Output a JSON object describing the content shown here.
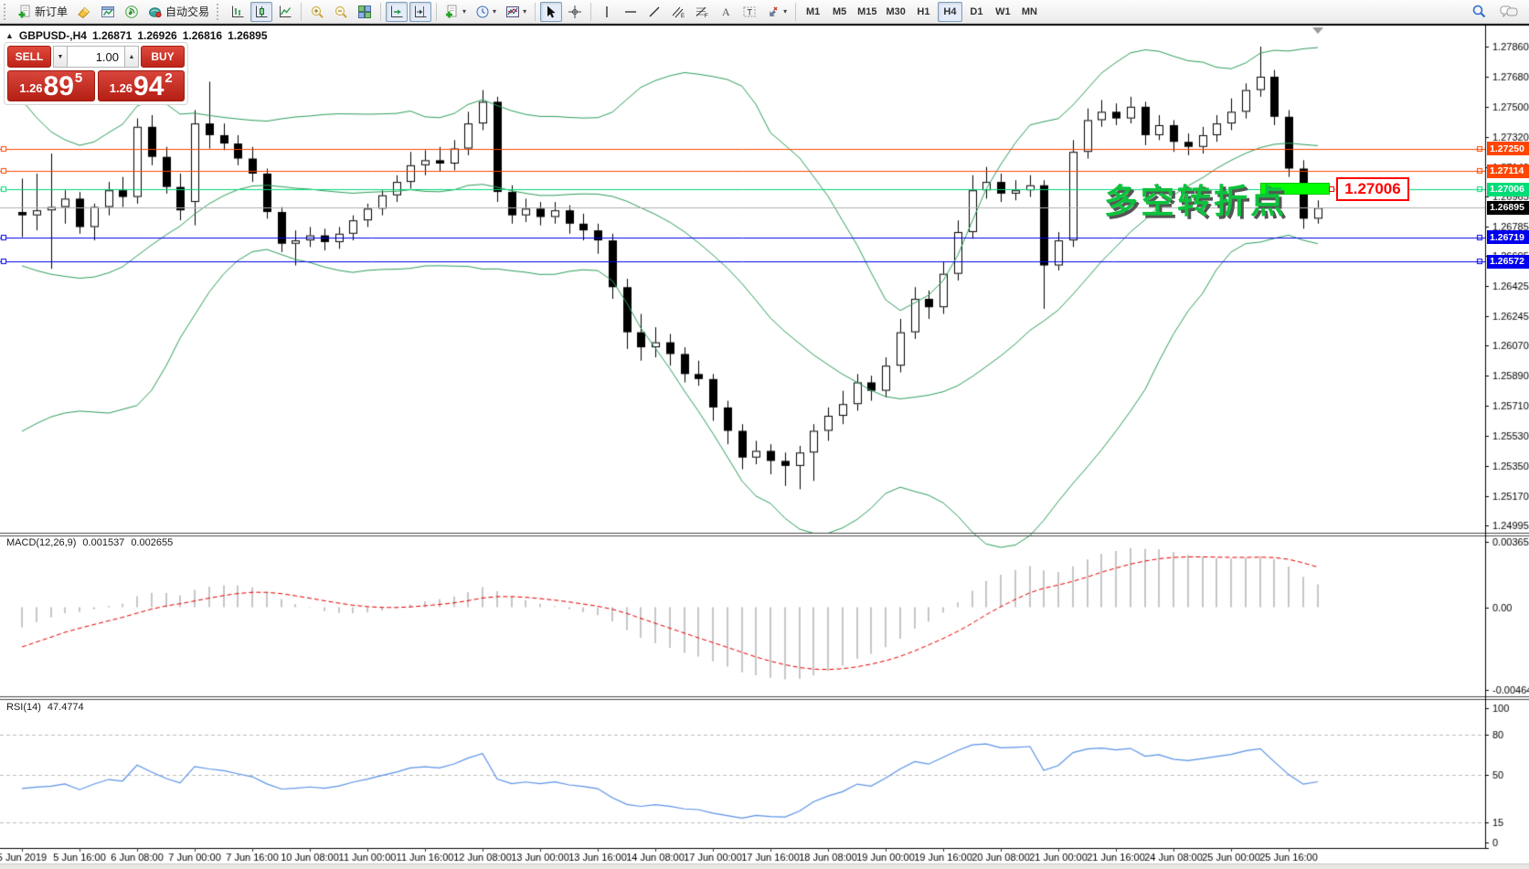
{
  "toolbar": {
    "new_order_label": "新订单",
    "autotrading_label": "自动交易",
    "timeframes": [
      "M1",
      "M5",
      "M15",
      "M30",
      "H1",
      "H4",
      "D1",
      "W1",
      "MN"
    ],
    "active_timeframe": "H4"
  },
  "icons": {
    "collapse_arrow": "▲",
    "caret_down": "▾",
    "spin_up": "▲",
    "spin_down": "▼"
  },
  "chart_header": {
    "symbol_period": "GBPUSD-,H4",
    "open": "1.26871",
    "high": "1.26926",
    "low": "1.26816",
    "close": "1.26895"
  },
  "quote_panel": {
    "sell_label": "SELL",
    "buy_label": "BUY",
    "volume": "1.00",
    "sell_price": {
      "small": "1.26",
      "big": "89",
      "sup": "5"
    },
    "buy_price": {
      "small": "1.26",
      "big": "94",
      "sup": "2"
    }
  },
  "annotation": {
    "text": "多空转折点",
    "price_label": "1.27006"
  },
  "macd_header": {
    "name": "MACD(12,26,9)",
    "value1": "0.001537",
    "value2": "0.002655"
  },
  "rsi_header": {
    "name": "RSI(14)",
    "value": "47.4774"
  },
  "chart_data": {
    "type": "candlestick",
    "symbol": "GBPUSD-",
    "timeframe": "H4",
    "ylim": [
      1.2495,
      1.27986
    ],
    "y_ticks": [
      "1.27860",
      "1.27680",
      "1.27500",
      "1.27320",
      "1.27140",
      "1.26965",
      "1.26785",
      "1.26605",
      "1.26425",
      "1.26245",
      "1.26070",
      "1.25890",
      "1.25710",
      "1.25530",
      "1.25350",
      "1.25170",
      "1.24995"
    ],
    "x_labels": [
      "5 Jun 2019",
      "5 Jun 16:00",
      "6 Jun 08:00",
      "7 Jun 00:00",
      "7 Jun 16:00",
      "10 Jun 08:00",
      "11 Jun 00:00",
      "11 Jun 16:00",
      "12 Jun 08:00",
      "13 Jun 00:00",
      "13 Jun 16:00",
      "14 Jun 08:00",
      "17 Jun 00:00",
      "17 Jun 16:00",
      "18 Jun 08:00",
      "19 Jun 00:00",
      "19 Jun 16:00",
      "20 Jun 08:00",
      "21 Jun 00:00",
      "21 Jun 16:00",
      "24 Jun 08:00",
      "25 Jun 00:00",
      "25 Jun 16:00"
    ],
    "hlines": [
      {
        "price": 1.2725,
        "label": "1.27250",
        "color": "#FF4500"
      },
      {
        "price": 1.27114,
        "label": "1.27114",
        "color": "#FF4500"
      },
      {
        "price": 1.27006,
        "label": "1.27006",
        "color": "#00DC78"
      },
      {
        "price": 1.26719,
        "label": "1.26719",
        "color": "#0000EE"
      },
      {
        "price": 1.26572,
        "label": "1.26572",
        "color": "#0000EE"
      }
    ],
    "current_price": {
      "value": 1.26895,
      "label": "1.26895"
    },
    "candles": [
      [
        1.2687,
        1.2707,
        1.2672,
        1.2685
      ],
      [
        1.2685,
        1.271,
        1.2676,
        1.2688
      ],
      [
        1.2688,
        1.2722,
        1.2653,
        1.269
      ],
      [
        1.269,
        1.27,
        1.268,
        1.2695
      ],
      [
        1.2695,
        1.2699,
        1.2674,
        1.2678
      ],
      [
        1.2678,
        1.2692,
        1.267,
        1.269
      ],
      [
        1.269,
        1.2705,
        1.2685,
        1.27
      ],
      [
        1.27,
        1.2708,
        1.269,
        1.2696
      ],
      [
        1.2696,
        1.2743,
        1.2692,
        1.2738
      ],
      [
        1.2738,
        1.2745,
        1.2715,
        1.272
      ],
      [
        1.272,
        1.2726,
        1.2698,
        1.2702
      ],
      [
        1.2702,
        1.271,
        1.2682,
        1.2688
      ],
      [
        1.2693,
        1.2748,
        1.2679,
        1.274
      ],
      [
        1.274,
        1.2765,
        1.2725,
        1.2733
      ],
      [
        1.2733,
        1.274,
        1.2724,
        1.2728
      ],
      [
        1.2728,
        1.2733,
        1.2715,
        1.2719
      ],
      [
        1.2719,
        1.2726,
        1.2705,
        1.271
      ],
      [
        1.271,
        1.2713,
        1.2683,
        1.2687
      ],
      [
        1.2687,
        1.269,
        1.2663,
        1.2668
      ],
      [
        1.2668,
        1.2676,
        1.2655,
        1.267
      ],
      [
        1.267,
        1.2678,
        1.2666,
        1.2673
      ],
      [
        1.2673,
        1.2677,
        1.2664,
        1.2669
      ],
      [
        1.2669,
        1.2678,
        1.2665,
        1.2674
      ],
      [
        1.2674,
        1.2685,
        1.267,
        1.2682
      ],
      [
        1.2682,
        1.2692,
        1.2678,
        1.2689
      ],
      [
        1.2689,
        1.27,
        1.2685,
        1.2697
      ],
      [
        1.2697,
        1.2709,
        1.2693,
        1.2705
      ],
      [
        1.2705,
        1.2723,
        1.2701,
        1.2715
      ],
      [
        1.2715,
        1.2724,
        1.2709,
        1.2718
      ],
      [
        1.2718,
        1.2726,
        1.2711,
        1.2716
      ],
      [
        1.2716,
        1.273,
        1.2712,
        1.2725
      ],
      [
        1.2725,
        1.2747,
        1.2721,
        1.274
      ],
      [
        1.274,
        1.276,
        1.2736,
        1.2753
      ],
      [
        1.2753,
        1.2756,
        1.2693,
        1.2699
      ],
      [
        1.2699,
        1.2703,
        1.268,
        1.2685
      ],
      [
        1.2685,
        1.2695,
        1.2681,
        1.2689
      ],
      [
        1.2689,
        1.2693,
        1.2679,
        1.2684
      ],
      [
        1.2684,
        1.2693,
        1.268,
        1.2688
      ],
      [
        1.2688,
        1.2691,
        1.2674,
        1.268
      ],
      [
        1.268,
        1.2686,
        1.267,
        1.2676
      ],
      [
        1.2676,
        1.268,
        1.2662,
        1.267
      ],
      [
        1.267,
        1.2674,
        1.2635,
        1.2642
      ],
      [
        1.2642,
        1.2647,
        1.2605,
        1.2615
      ],
      [
        1.2615,
        1.2626,
        1.2598,
        1.2606
      ],
      [
        1.2606,
        1.2618,
        1.26,
        1.2609
      ],
      [
        1.2609,
        1.2614,
        1.2595,
        1.2602
      ],
      [
        1.2602,
        1.2606,
        1.2585,
        1.259
      ],
      [
        1.259,
        1.2598,
        1.2583,
        1.2587
      ],
      [
        1.2587,
        1.259,
        1.2562,
        1.257
      ],
      [
        1.257,
        1.2574,
        1.2548,
        1.2556
      ],
      [
        1.2556,
        1.256,
        1.2533,
        1.254
      ],
      [
        1.254,
        1.255,
        1.2536,
        1.2544
      ],
      [
        1.2544,
        1.2548,
        1.253,
        1.2538
      ],
      [
        1.2538,
        1.2543,
        1.2523,
        1.2535
      ],
      [
        1.2535,
        1.2547,
        1.2521,
        1.2543
      ],
      [
        1.2543,
        1.256,
        1.2526,
        1.2556
      ],
      [
        1.2556,
        1.257,
        1.255,
        1.2565
      ],
      [
        1.2565,
        1.258,
        1.256,
        1.2572
      ],
      [
        1.2572,
        1.259,
        1.2568,
        1.2585
      ],
      [
        1.2585,
        1.2589,
        1.2574,
        1.258
      ],
      [
        1.258,
        1.26,
        1.2576,
        1.2595
      ],
      [
        1.2595,
        1.2623,
        1.2591,
        1.2615
      ],
      [
        1.2615,
        1.2642,
        1.2611,
        1.2635
      ],
      [
        1.2635,
        1.264,
        1.2623,
        1.263
      ],
      [
        1.263,
        1.2657,
        1.2626,
        1.265
      ],
      [
        1.265,
        1.2682,
        1.2646,
        1.2675
      ],
      [
        1.2675,
        1.2709,
        1.2671,
        1.27
      ],
      [
        1.27,
        1.2714,
        1.2695,
        1.2705
      ],
      [
        1.2705,
        1.271,
        1.2693,
        1.2698
      ],
      [
        1.2698,
        1.2706,
        1.2694,
        1.27
      ],
      [
        1.27,
        1.2709,
        1.2696,
        1.2703
      ],
      [
        1.2703,
        1.2706,
        1.2629,
        1.2655
      ],
      [
        1.2655,
        1.2675,
        1.2652,
        1.267
      ],
      [
        1.267,
        1.273,
        1.2666,
        1.2723
      ],
      [
        1.2723,
        1.2749,
        1.2719,
        1.2742
      ],
      [
        1.2742,
        1.2754,
        1.2738,
        1.2747
      ],
      [
        1.2747,
        1.2752,
        1.2739,
        1.2743
      ],
      [
        1.2743,
        1.2756,
        1.274,
        1.275
      ],
      [
        1.275,
        1.2753,
        1.2727,
        1.2733
      ],
      [
        1.2733,
        1.2745,
        1.273,
        1.2739
      ],
      [
        1.2739,
        1.2742,
        1.2723,
        1.2729
      ],
      [
        1.2729,
        1.2734,
        1.2721,
        1.2726
      ],
      [
        1.2726,
        1.2738,
        1.2722,
        1.2733
      ],
      [
        1.2733,
        1.2745,
        1.2729,
        1.274
      ],
      [
        1.274,
        1.2755,
        1.2736,
        1.2747
      ],
      [
        1.2747,
        1.2764,
        1.2743,
        1.276
      ],
      [
        1.276,
        1.2786,
        1.2756,
        1.2768
      ],
      [
        1.2768,
        1.2772,
        1.2739,
        1.2744
      ],
      [
        1.2744,
        1.2748,
        1.2708,
        1.2713
      ],
      [
        1.2713,
        1.2718,
        1.2677,
        1.2683
      ],
      [
        1.2683,
        1.2694,
        1.268,
        1.26895
      ]
    ],
    "seed_closes": [
      1.2745,
      1.2735,
      1.272,
      1.27,
      1.2675,
      1.265,
      1.2625,
      1.2605,
      1.259,
      1.258,
      1.2585,
      1.2595,
      1.261,
      1.263,
      1.265,
      1.2665,
      1.2678,
      1.2685,
      1.2688
    ],
    "indicators": {
      "bollinger": {
        "period": 20,
        "deviation": 2,
        "color": "#2E9E5B"
      },
      "macd": {
        "params": "12,26,9",
        "ticks": [
          "0.003658",
          "0.00",
          "-0.004645"
        ],
        "tick_values": [
          0.003658,
          0.0,
          -0.004645
        ],
        "ylim": [
          -0.005,
          0.00408
        ],
        "bar_color": "#C6C6C6",
        "signal_color": "#E60000"
      },
      "rsi": {
        "period": 14,
        "ticks": [
          "100",
          "80",
          "50",
          "15",
          "0"
        ],
        "tick_values": [
          100,
          80,
          50,
          15,
          0
        ],
        "levels": [
          80,
          50,
          15
        ],
        "line_color": "#5B93E6",
        "ylim": [
          -4.1,
          106.8
        ]
      }
    },
    "colors": {
      "bull": "#FFFFFF",
      "bear": "#000000",
      "outline": "#000000",
      "current_line": "#B0B0B0",
      "highlight": "#00FF00",
      "flag_border": "#FF0000",
      "annotation": "#0CC23C"
    }
  }
}
